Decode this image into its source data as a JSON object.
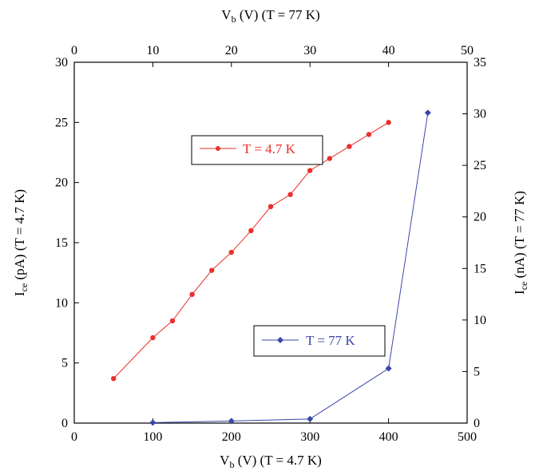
{
  "chart_data": {
    "type": "line",
    "xlabel": {
      "main": "V",
      "sub": "b",
      "rest": " (V) (T = 4.7 K)"
    },
    "x2label": {
      "main": "V",
      "sub": "b",
      "rest": " (V) (T = 77 K)"
    },
    "ylabel": {
      "main": "I",
      "sub": "ce",
      "rest": " (pA) (T = 4.7 K)"
    },
    "y2label": {
      "main": "I",
      "sub": "ce",
      "rest": " (nA) (T = 77 K)"
    },
    "xlim": [
      0,
      500
    ],
    "x2lim": [
      0,
      50
    ],
    "ylim": [
      0,
      30
    ],
    "y2lim": [
      0,
      35
    ],
    "xticks": [
      "0",
      "100",
      "200",
      "300",
      "400",
      "500"
    ],
    "x2ticks": [
      "0",
      "10",
      "20",
      "30",
      "40",
      "50"
    ],
    "yticks": [
      "0",
      "5",
      "10",
      "15",
      "20",
      "25",
      "30"
    ],
    "y2ticks": [
      "0",
      "5",
      "10",
      "15",
      "20",
      "25",
      "30",
      "35"
    ],
    "grid": false,
    "series": [
      {
        "name": "T = 4.7 K",
        "axis": "left-bottom",
        "color": "#e8302c",
        "marker": "circle",
        "x": [
          50,
          100,
          125,
          150,
          175,
          200,
          225,
          250,
          275,
          300,
          325,
          350,
          375,
          400
        ],
        "y": [
          3.7,
          7.1,
          8.5,
          10.7,
          12.7,
          14.2,
          16.0,
          18.0,
          19.0,
          21.0,
          22.0,
          23.0,
          24.0,
          25.0
        ]
      },
      {
        "name": "T = 77 K",
        "axis": "right-top",
        "color": "#3a46a8",
        "marker": "diamond",
        "x": [
          10,
          20,
          30,
          40,
          45
        ],
        "y": [
          0.05,
          0.2,
          0.4,
          5.3,
          30.1
        ]
      }
    ],
    "legend": {
      "placement": "in-plot"
    }
  }
}
